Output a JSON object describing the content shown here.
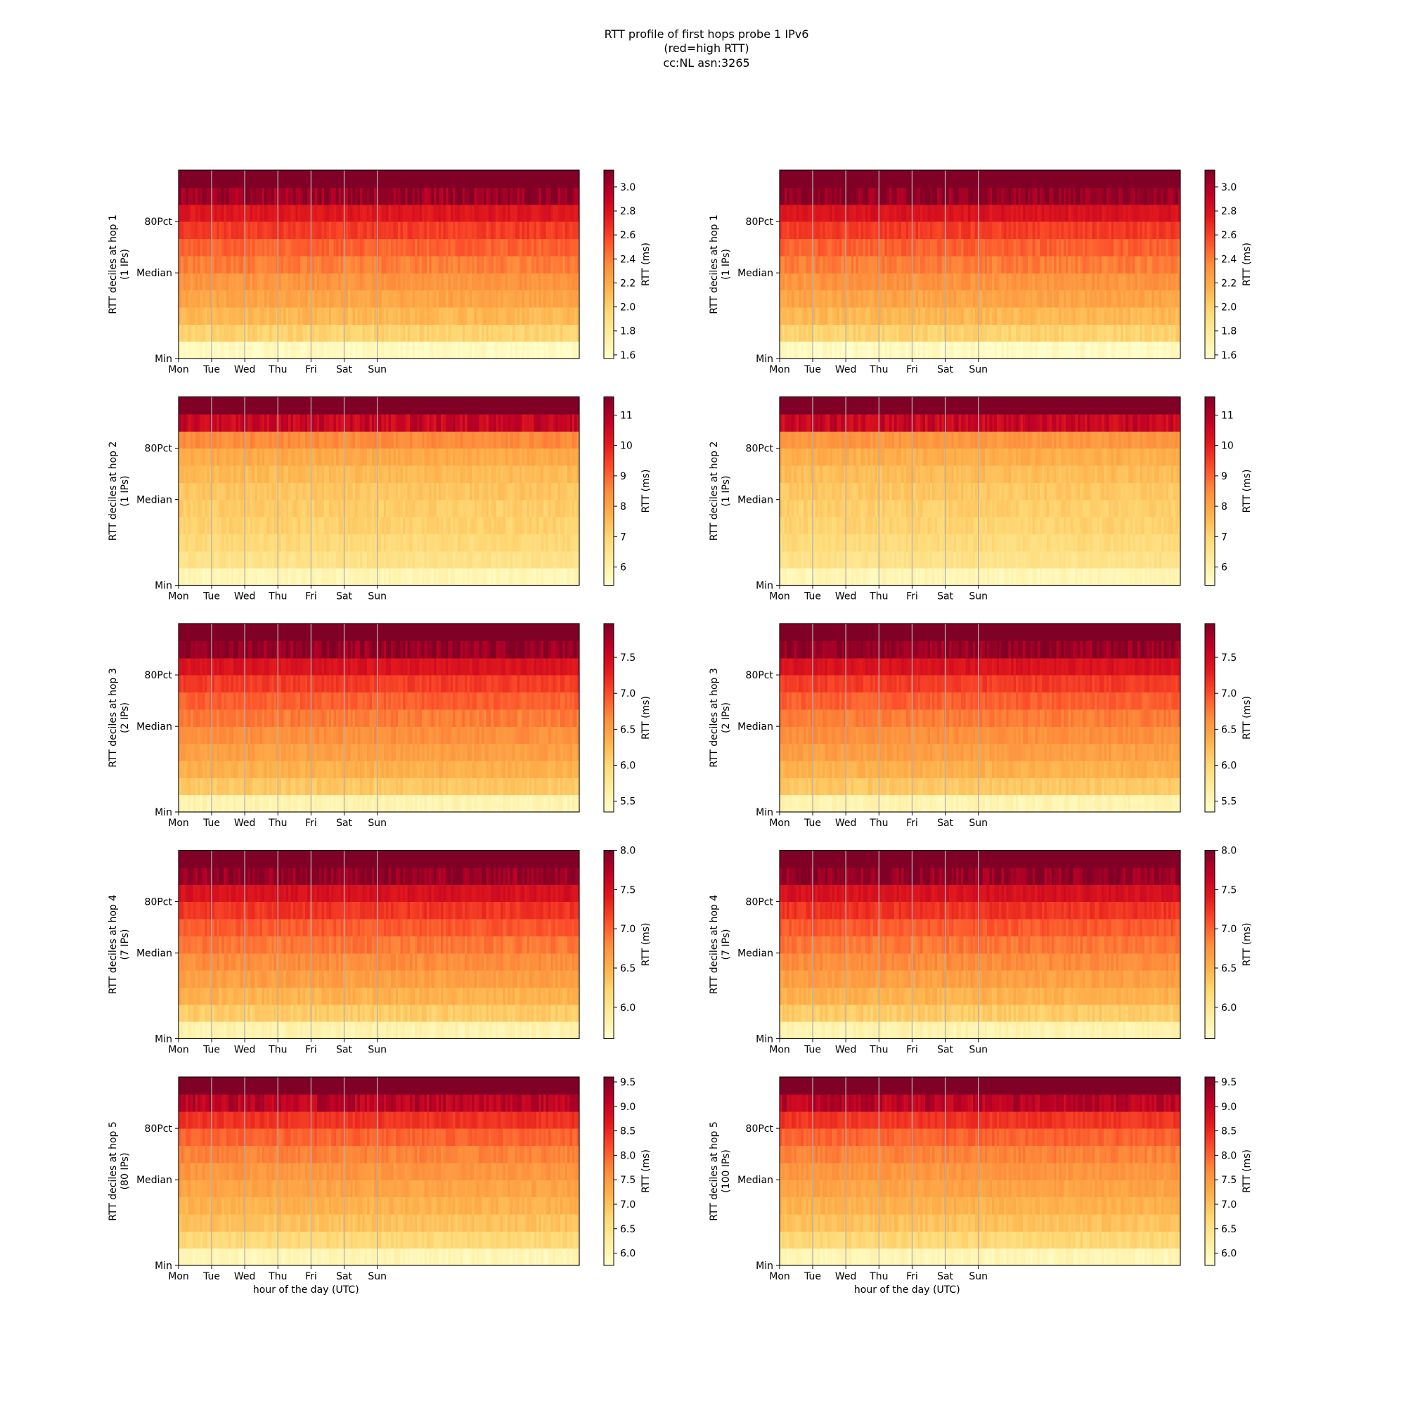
{
  "figure": {
    "title_lines": [
      "RTT profile of first hops probe 1 IPv6",
      "(red=high RTT)",
      "cc:NL asn:3265"
    ]
  },
  "common": {
    "x_tick_labels": [
      "Mon",
      "Tue",
      "Wed",
      "Thu",
      "Fri",
      "Sat",
      "Sun"
    ],
    "y_tick_labels": [
      "Min",
      "Median",
      "80Pct"
    ],
    "xlabel": "hour of the day (UTC)",
    "colorbar_label": "RTT (ms)",
    "colormap": [
      "#ffffcc",
      "#ffeda0",
      "#fed976",
      "#feb24c",
      "#fd8d3c",
      "#fc4e2a",
      "#e31a1c",
      "#bd0026",
      "#800026"
    ]
  },
  "chart_data": [
    {
      "type": "heatmap",
      "hop": 1,
      "column": "left",
      "ylabel": "RTT deciles at hop 1",
      "ylabel2": "(1 IPs)",
      "xlabel": "",
      "colorbar_ticks": [
        "1.6",
        "1.8",
        "2.0",
        "2.2",
        "2.4",
        "2.6",
        "2.8",
        "3.0"
      ],
      "vmin": 1.57,
      "vmax": 3.14,
      "decile_values": [
        1.62,
        1.99,
        2.13,
        2.23,
        2.31,
        2.4,
        2.49,
        2.62,
        2.78,
        3.05,
        3.4
      ],
      "noise": 0.06
    },
    {
      "type": "heatmap",
      "hop": 1,
      "column": "right",
      "ylabel": "RTT deciles at hop 1",
      "ylabel2": "(1 IPs)",
      "xlabel": "",
      "colorbar_ticks": [
        "1.6",
        "1.8",
        "2.0",
        "2.2",
        "2.4",
        "2.6",
        "2.8",
        "3.0"
      ],
      "vmin": 1.57,
      "vmax": 3.14,
      "decile_values": [
        1.62,
        1.99,
        2.13,
        2.23,
        2.31,
        2.4,
        2.49,
        2.62,
        2.8,
        3.08,
        3.4
      ],
      "noise": 0.06
    },
    {
      "type": "heatmap",
      "hop": 2,
      "column": "left",
      "ylabel": "RTT deciles at hop 2",
      "ylabel2": "(1 IPs)",
      "xlabel": "",
      "colorbar_ticks": [
        "6",
        "7",
        "8",
        "9",
        "10",
        "11"
      ],
      "vmin": 5.4,
      "vmax": 11.6,
      "decile_values": [
        5.8,
        6.6,
        6.9,
        7.1,
        7.2,
        7.35,
        7.55,
        7.9,
        8.5,
        10.6,
        12.5
      ],
      "noise": 0.2
    },
    {
      "type": "heatmap",
      "hop": 2,
      "column": "right",
      "ylabel": "RTT deciles at hop 2",
      "ylabel2": "(1 IPs)",
      "xlabel": "",
      "colorbar_ticks": [
        "6",
        "7",
        "8",
        "9",
        "10",
        "11"
      ],
      "vmin": 5.4,
      "vmax": 11.6,
      "decile_values": [
        5.8,
        6.6,
        6.85,
        7.05,
        7.15,
        7.3,
        7.5,
        7.8,
        8.3,
        10.6,
        12.5
      ],
      "noise": 0.2
    },
    {
      "type": "heatmap",
      "hop": 3,
      "column": "left",
      "ylabel": "RTT deciles at hop 3",
      "ylabel2": "(2 IPs)",
      "xlabel": "",
      "colorbar_ticks": [
        "5.5",
        "6.0",
        "6.5",
        "7.0",
        "7.5"
      ],
      "vmin": 5.35,
      "vmax": 7.97,
      "decile_values": [
        5.55,
        6.15,
        6.35,
        6.5,
        6.62,
        6.75,
        6.9,
        7.1,
        7.4,
        7.85,
        8.3
      ],
      "noise": 0.09
    },
    {
      "type": "heatmap",
      "hop": 3,
      "column": "right",
      "ylabel": "RTT deciles at hop 3",
      "ylabel2": "(2 IPs)",
      "xlabel": "",
      "colorbar_ticks": [
        "5.5",
        "6.0",
        "6.5",
        "7.0",
        "7.5"
      ],
      "vmin": 5.35,
      "vmax": 7.97,
      "decile_values": [
        5.55,
        6.15,
        6.35,
        6.5,
        6.62,
        6.75,
        6.9,
        7.1,
        7.4,
        7.85,
        8.3
      ],
      "noise": 0.09
    },
    {
      "type": "heatmap",
      "hop": 4,
      "column": "left",
      "ylabel": "RTT deciles at hop 4",
      "ylabel2": "(7 IPs)",
      "xlabel": "",
      "colorbar_ticks": [
        "6.0",
        "6.5",
        "7.0",
        "7.5",
        "8.0"
      ],
      "vmin": 5.6,
      "vmax": 8.0,
      "decile_values": [
        5.8,
        6.3,
        6.5,
        6.65,
        6.78,
        6.9,
        7.05,
        7.25,
        7.5,
        7.9,
        8.3
      ],
      "noise": 0.09
    },
    {
      "type": "heatmap",
      "hop": 4,
      "column": "right",
      "ylabel": "RTT deciles at hop 4",
      "ylabel2": "(7 IPs)",
      "xlabel": "",
      "colorbar_ticks": [
        "6.0",
        "6.5",
        "7.0",
        "7.5",
        "8.0"
      ],
      "vmin": 5.6,
      "vmax": 8.0,
      "decile_values": [
        5.8,
        6.3,
        6.5,
        6.65,
        6.78,
        6.9,
        7.05,
        7.25,
        7.5,
        7.9,
        8.3
      ],
      "noise": 0.09
    },
    {
      "type": "heatmap",
      "hop": 5,
      "column": "left",
      "ylabel": "RTT deciles at hop 5",
      "ylabel2": "(80 IPs)",
      "xlabel": "hour of the day (UTC)",
      "colorbar_ticks": [
        "6.0",
        "6.5",
        "7.0",
        "7.5",
        "8.0",
        "8.5",
        "9.0",
        "9.5"
      ],
      "vmin": 5.75,
      "vmax": 9.6,
      "decile_values": [
        6.0,
        6.7,
        7.0,
        7.2,
        7.38,
        7.55,
        7.75,
        8.0,
        8.4,
        9.1,
        10.0
      ],
      "noise": 0.13
    },
    {
      "type": "heatmap",
      "hop": 5,
      "column": "right",
      "ylabel": "RTT deciles at hop 5",
      "ylabel2": "(100 IPs)",
      "xlabel": "hour of the day (UTC)",
      "colorbar_ticks": [
        "6.0",
        "6.5",
        "7.0",
        "7.5",
        "8.0",
        "8.5",
        "9.0",
        "9.5"
      ],
      "vmin": 5.75,
      "vmax": 9.6,
      "decile_values": [
        6.0,
        6.7,
        7.0,
        7.2,
        7.38,
        7.55,
        7.75,
        8.0,
        8.4,
        9.1,
        10.0
      ],
      "noise": 0.13
    }
  ]
}
